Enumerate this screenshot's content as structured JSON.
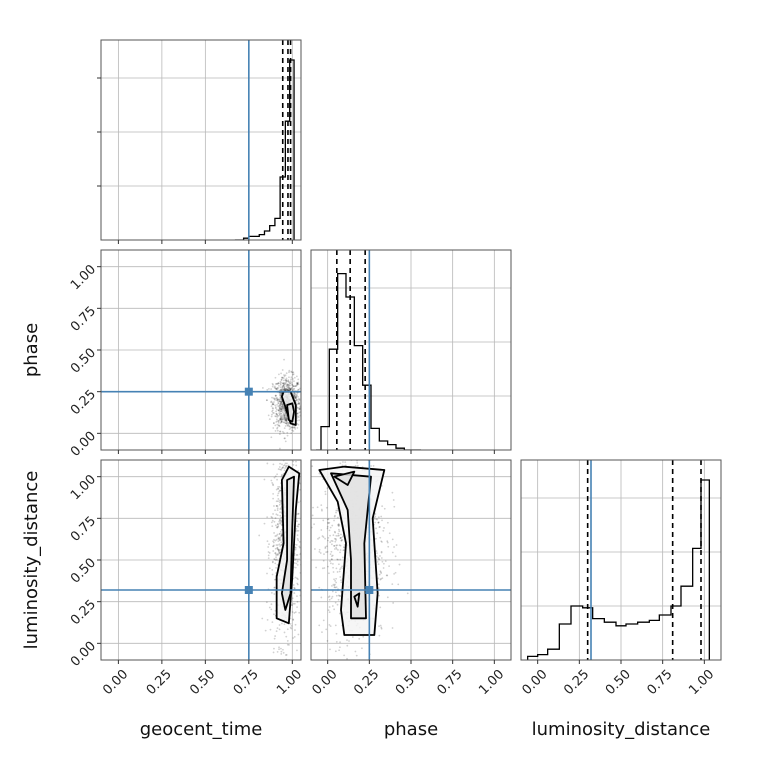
{
  "chart_data": {
    "type": "corner",
    "parameters": [
      "geocent_time",
      "phase",
      "luminosity_distance"
    ],
    "axis_labels": {
      "geocent_time": "geocent_time",
      "phase": "phase",
      "luminosity_distance": "luminosity_distance"
    },
    "axis_ranges": {
      "geocent_time": [
        -0.1,
        1.05
      ],
      "phase": [
        -0.1,
        1.1
      ],
      "luminosity_distance": [
        -0.1,
        1.1
      ]
    },
    "tick_labels": [
      "0.00",
      "0.25",
      "0.50",
      "0.75",
      "1.00"
    ],
    "tick_values": [
      0,
      0.25,
      0.5,
      0.75,
      1.0
    ],
    "grid": true,
    "truth_color": "#4682b4",
    "truths": {
      "geocent_time": 0.75,
      "phase": 0.25,
      "luminosity_distance": 0.32
    },
    "quantiles": {
      "geocent_time": [
        0.945,
        0.975,
        0.99
      ],
      "phase": [
        0.055,
        0.135,
        0.225
      ],
      "luminosity_distance": [
        0.3,
        0.81,
        0.98
      ]
    },
    "histograms": {
      "geocent_time": {
        "bin_edges": [
          0.67,
          0.7,
          0.72,
          0.75,
          0.78,
          0.81,
          0.84,
          0.87,
          0.9,
          0.93,
          0.96,
          0.985,
          1.01
        ],
        "counts": [
          0.0,
          0.0,
          0.01,
          0.02,
          0.02,
          0.03,
          0.05,
          0.08,
          0.12,
          0.35,
          0.66,
          1.0
        ]
      },
      "phase": {
        "bin_edges": [
          -0.07,
          -0.04,
          0.01,
          0.06,
          0.11,
          0.16,
          0.21,
          0.26,
          0.31,
          0.36,
          0.41,
          0.46,
          0.51,
          0.56
        ],
        "counts": [
          0.0,
          0.13,
          0.56,
          0.98,
          0.85,
          0.58,
          0.36,
          0.12,
          0.05,
          0.03,
          0.01,
          0.0,
          0.0
        ]
      },
      "luminosity_distance": {
        "bin_edges": [
          -0.06,
          0.0,
          0.06,
          0.13,
          0.2,
          0.27,
          0.33,
          0.4,
          0.47,
          0.53,
          0.6,
          0.67,
          0.73,
          0.8,
          0.86,
          0.93,
          0.98,
          1.03
        ],
        "counts": [
          0.02,
          0.03,
          0.06,
          0.2,
          0.3,
          0.29,
          0.23,
          0.21,
          0.19,
          0.2,
          0.21,
          0.22,
          0.25,
          0.3,
          0.41,
          0.62,
          1.0
        ]
      }
    },
    "panels_2d": [
      {
        "x": "geocent_time",
        "y": "phase",
        "point_cloud": {
          "center": [
            0.97,
            0.18
          ],
          "spread": [
            0.04,
            0.08
          ]
        },
        "contours": [
          [
            [
              0.94,
              0.22
            ],
            [
              0.96,
              0.16
            ],
            [
              0.99,
              0.06
            ],
            [
              1.02,
              0.05
            ],
            [
              1.02,
              0.17
            ],
            [
              0.99,
              0.25
            ],
            [
              0.95,
              0.25
            ]
          ],
          [
            [
              0.97,
              0.17
            ],
            [
              0.98,
              0.08
            ],
            [
              1.0,
              0.07
            ],
            [
              1.01,
              0.13
            ],
            [
              1.0,
              0.18
            ]
          ]
        ]
      },
      {
        "x": "geocent_time",
        "y": "luminosity_distance",
        "point_cloud": {
          "center": [
            0.96,
            0.6
          ],
          "spread": [
            0.04,
            0.3
          ]
        },
        "contours": [
          [
            [
              0.94,
              0.98
            ],
            [
              0.95,
              0.6
            ],
            [
              0.91,
              0.4
            ],
            [
              0.91,
              0.15
            ],
            [
              0.98,
              0.12
            ],
            [
              1.0,
              0.4
            ],
            [
              1.02,
              0.8
            ],
            [
              1.04,
              1.02
            ],
            [
              0.98,
              1.06
            ]
          ],
          [
            [
              0.97,
              0.98
            ],
            [
              0.97,
              0.5
            ],
            [
              0.94,
              0.3
            ],
            [
              0.96,
              0.2
            ],
            [
              0.99,
              0.3
            ],
            [
              1.0,
              0.7
            ],
            [
              1.01,
              1.0
            ]
          ]
        ]
      },
      {
        "x": "phase",
        "y": "luminosity_distance",
        "point_cloud": {
          "center": [
            0.15,
            0.6
          ],
          "spread": [
            0.1,
            0.3
          ]
        },
        "contours": [
          [
            [
              -0.05,
              1.04
            ],
            [
              0.06,
              0.85
            ],
            [
              0.11,
              0.6
            ],
            [
              0.08,
              0.2
            ],
            [
              0.1,
              0.05
            ],
            [
              0.28,
              0.05
            ],
            [
              0.3,
              0.3
            ],
            [
              0.27,
              0.75
            ],
            [
              0.34,
              1.04
            ],
            [
              0.1,
              1.06
            ]
          ],
          [
            [
              0.02,
              1.02
            ],
            [
              0.12,
              0.8
            ],
            [
              0.14,
              0.5
            ],
            [
              0.14,
              0.15
            ],
            [
              0.23,
              0.15
            ],
            [
              0.22,
              0.6
            ],
            [
              0.26,
              1.0
            ]
          ],
          [
            [
              0.04,
              1.0
            ],
            [
              0.12,
              0.95
            ],
            [
              0.16,
              1.03
            ]
          ],
          [
            [
              0.16,
              0.28
            ],
            [
              0.18,
              0.22
            ],
            [
              0.19,
              0.3
            ]
          ]
        ]
      }
    ]
  }
}
